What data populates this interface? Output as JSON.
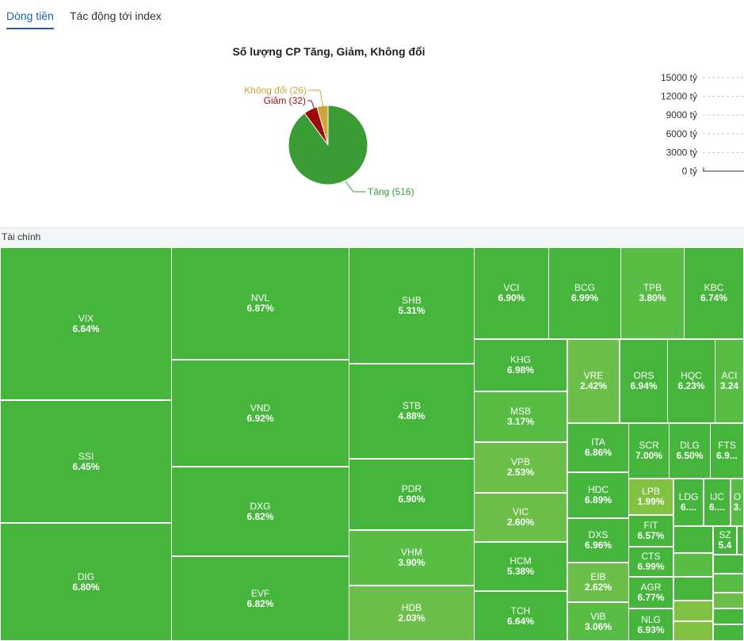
{
  "tabs": [
    {
      "label": "Dòng tiền",
      "active": true
    },
    {
      "label": "Tác động tới index",
      "active": false
    }
  ],
  "colors": {
    "up_strong": "#45b53b",
    "up_mid": "#58bd45",
    "up_light": "#6cc04a",
    "up_pale": "#82c243",
    "down": "#9b0a0a",
    "flat": "#d1a33c",
    "pie_up": "#3a9c34"
  },
  "chart_data": [
    {
      "type": "pie",
      "title": "Số lượng CP Tăng, Giảm, Không đổi",
      "slices": [
        {
          "label": "Tăng (516)",
          "value": 516,
          "color": "#3a9c34"
        },
        {
          "label": "Giảm (32)",
          "value": 32,
          "color": "#9b0a0a"
        },
        {
          "label": "Không đổi (26)",
          "value": 26,
          "color": "#d1a33c"
        }
      ]
    },
    {
      "type": "bar",
      "yticks": [
        "15000 tỷ",
        "12000 tỷ",
        "9000 tỷ",
        "6000 tỷ",
        "3000 tỷ",
        "0 tỷ"
      ],
      "ylim": [
        0,
        15000
      ],
      "grid": true
    }
  ],
  "treemap": {
    "section": "Tài chính",
    "cells": [
      {
        "symbol": "VIX",
        "change": "6.64%",
        "shade": "up_strong"
      },
      {
        "symbol": "SSI",
        "change": "6.45%",
        "shade": "up_strong"
      },
      {
        "symbol": "DIG",
        "change": "6.80%",
        "shade": "up_strong"
      },
      {
        "symbol": "NVL",
        "change": "6.87%",
        "shade": "up_strong"
      },
      {
        "symbol": "VND",
        "change": "6.92%",
        "shade": "up_strong"
      },
      {
        "symbol": "DXG",
        "change": "6.82%",
        "shade": "up_strong"
      },
      {
        "symbol": "EVF",
        "change": "6.82%",
        "shade": "up_strong"
      },
      {
        "symbol": "SHB",
        "change": "5.31%",
        "shade": "up_strong"
      },
      {
        "symbol": "STB",
        "change": "4.88%",
        "shade": "up_strong"
      },
      {
        "symbol": "PDR",
        "change": "6.90%",
        "shade": "up_strong"
      },
      {
        "symbol": "VHM",
        "change": "3.90%",
        "shade": "up_mid"
      },
      {
        "symbol": "HDB",
        "change": "2.03%",
        "shade": "up_light"
      },
      {
        "symbol": "VCI",
        "change": "6.90%",
        "shade": "up_strong"
      },
      {
        "symbol": "BCG",
        "change": "6.99%",
        "shade": "up_strong"
      },
      {
        "symbol": "TPB",
        "change": "3.80%",
        "shade": "up_mid"
      },
      {
        "symbol": "KBC",
        "change": "6.74%",
        "shade": "up_strong"
      },
      {
        "symbol": "KHG",
        "change": "6.98%",
        "shade": "up_strong"
      },
      {
        "symbol": "MSB",
        "change": "3.17%",
        "shade": "up_mid"
      },
      {
        "symbol": "VPB",
        "change": "2.53%",
        "shade": "up_light"
      },
      {
        "symbol": "VIC",
        "change": "2.60%",
        "shade": "up_light"
      },
      {
        "symbol": "HCM",
        "change": "5.38%",
        "shade": "up_strong"
      },
      {
        "symbol": "TCH",
        "change": "6.64%",
        "shade": "up_strong"
      },
      {
        "symbol": "VRE",
        "change": "2.42%",
        "shade": "up_light"
      },
      {
        "symbol": "ORS",
        "change": "6.94%",
        "shade": "up_strong"
      },
      {
        "symbol": "HQC",
        "change": "6.23%",
        "shade": "up_strong"
      },
      {
        "symbol": "ACI",
        "change": "3.24",
        "shade": "up_mid"
      },
      {
        "symbol": "ITA",
        "change": "6.86%",
        "shade": "up_strong"
      },
      {
        "symbol": "SCR",
        "change": "7.00%",
        "shade": "up_strong"
      },
      {
        "symbol": "DLG",
        "change": "6.50%",
        "shade": "up_strong"
      },
      {
        "symbol": "FTS",
        "change": "6.9...",
        "shade": "up_strong"
      },
      {
        "symbol": "HDC",
        "change": "6.89%",
        "shade": "up_strong"
      },
      {
        "symbol": "LPB",
        "change": "1.99%",
        "shade": "up_pale"
      },
      {
        "symbol": "LDG",
        "change": "6....",
        "shade": "up_strong"
      },
      {
        "symbol": "IJC",
        "change": "6....",
        "shade": "up_strong"
      },
      {
        "symbol": "O",
        "change": "3.",
        "shade": "up_mid"
      },
      {
        "symbol": "DXS",
        "change": "6.96%",
        "shade": "up_strong"
      },
      {
        "symbol": "FIT",
        "change": "6.57%",
        "shade": "up_strong"
      },
      {
        "symbol": "SZ",
        "change": "5.4",
        "shade": "up_strong"
      },
      {
        "symbol": "EIB",
        "change": "2.62%",
        "shade": "up_light"
      },
      {
        "symbol": "CTS",
        "change": "6.99%",
        "shade": "up_strong"
      },
      {
        "symbol": "AGR",
        "change": "6.77%",
        "shade": "up_strong"
      },
      {
        "symbol": "VIB",
        "change": "3.06%",
        "shade": "up_mid"
      },
      {
        "symbol": "NLG",
        "change": "6.93%",
        "shade": "up_strong"
      }
    ]
  }
}
